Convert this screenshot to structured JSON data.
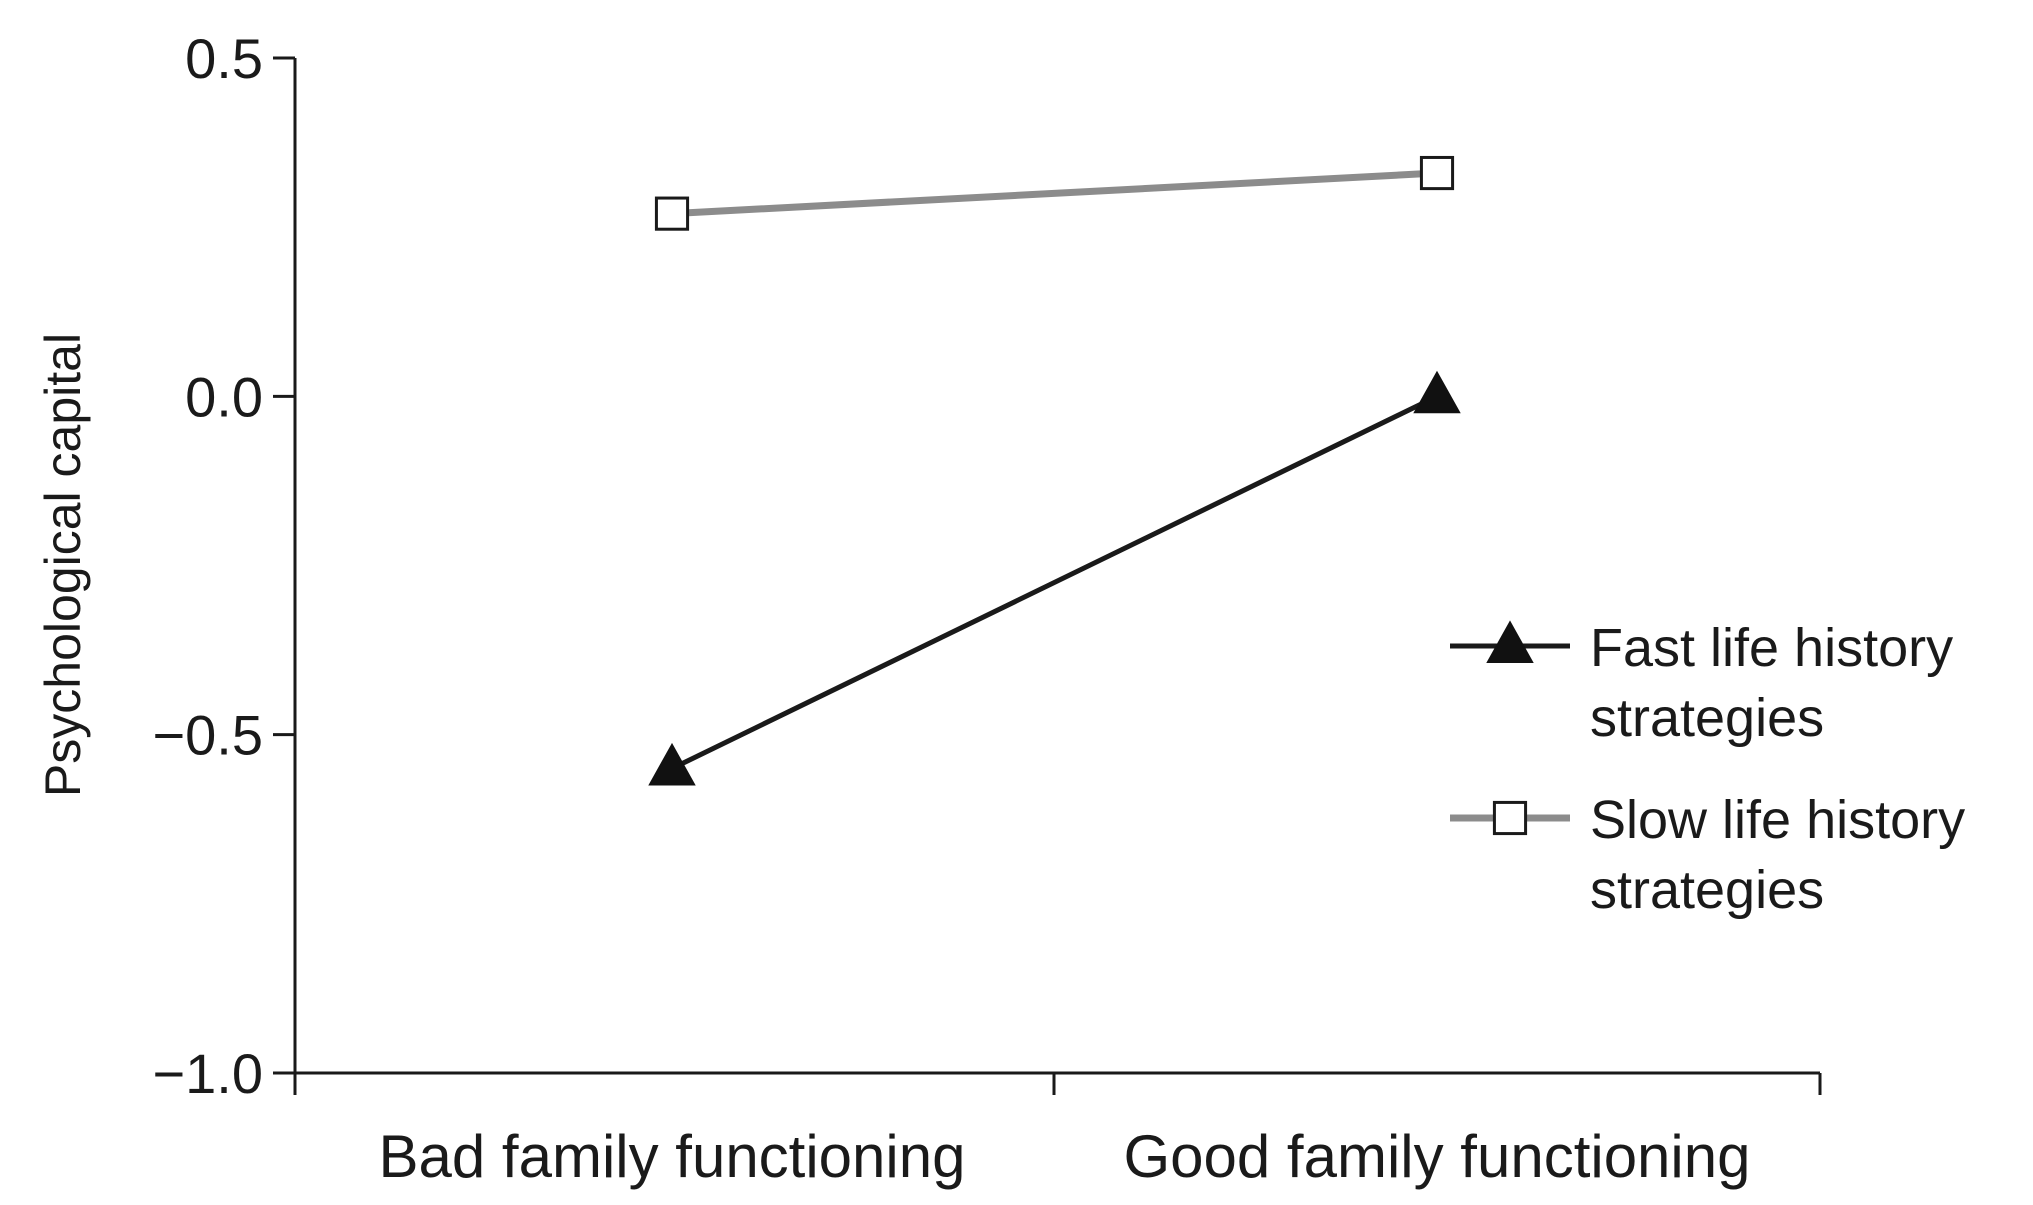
{
  "chart_data": {
    "type": "line",
    "title": "",
    "xlabel": "",
    "ylabel": "Psychological capital",
    "categories": [
      "Bad family functioning",
      "Good family functioning"
    ],
    "ylim": [
      -1.0,
      0.5
    ],
    "yticks": [
      0.5,
      0.0,
      -0.5,
      -1.0
    ],
    "ytick_labels": [
      "0.5",
      "0.0",
      "−0.5",
      "−1.0"
    ],
    "grid": false,
    "legend_position": "right",
    "series": [
      {
        "name": "Fast life history strategies",
        "legend_lines": [
          "Fast life history",
          "strategies"
        ],
        "values": [
          -0.55,
          0.0
        ],
        "color": "#1a1a1a",
        "marker": "triangle-filled"
      },
      {
        "name": "Slow life history strategies",
        "legend_lines": [
          "Slow life history",
          "strategies"
        ],
        "values": [
          0.27,
          0.33
        ],
        "color": "#8c8c8c",
        "marker": "square-open"
      }
    ]
  }
}
